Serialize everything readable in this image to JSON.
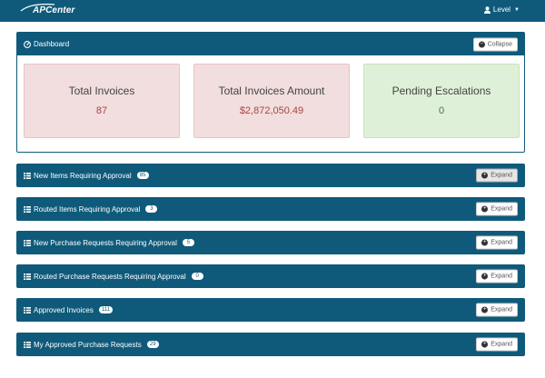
{
  "app": {
    "logo_text": "APCenter",
    "user_label": "Level"
  },
  "dashboard": {
    "title": "Dashboard",
    "collapse_label": "Collapse",
    "cards": [
      {
        "label": "Total Invoices",
        "value": "87",
        "status": "danger"
      },
      {
        "label": "Total Invoices Amount",
        "value": "$2,872,050.49",
        "status": "danger"
      },
      {
        "label": "Pending Escalations",
        "value": "0",
        "status": "success"
      }
    ]
  },
  "sections": [
    {
      "title": "New Items Requiring Approval",
      "count": "85",
      "button": "Expand"
    },
    {
      "title": "Routed Items Requiring Approval",
      "count": "3",
      "button": "Expand"
    },
    {
      "title": "New Purchase Requests Requiring Approval",
      "count": "5",
      "button": "Expand"
    },
    {
      "title": "Routed Purchase Requests Requiring Approval",
      "count": "0",
      "button": "Expand"
    },
    {
      "title": "Approved Invoices",
      "count": "111",
      "button": "Expand"
    },
    {
      "title": "My Approved Purchase Requests",
      "count": "29",
      "button": "Expand"
    }
  ],
  "colors": {
    "header": "#0f5a7a",
    "danger_bg": "#f2dede",
    "success_bg": "#dff0d8"
  }
}
